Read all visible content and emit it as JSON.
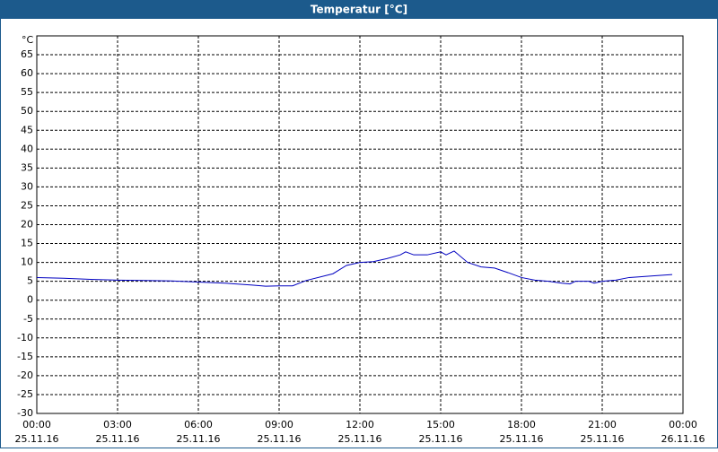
{
  "chart_data": {
    "type": "line",
    "title": "Temperatur [°C]",
    "y_label": "°C",
    "x": [
      0,
      1,
      2,
      3,
      4,
      5,
      6,
      7,
      8,
      8.5,
      9,
      9.5,
      10,
      11,
      11.5,
      12,
      12.5,
      13,
      13.5,
      13.7,
      14,
      14.5,
      15,
      15.2,
      15.5,
      16,
      16.5,
      17,
      17.5,
      18,
      18.5,
      19,
      19.5,
      19.8,
      20,
      20.5,
      20.7,
      21,
      21.5,
      22,
      23,
      23.6
    ],
    "series": [
      {
        "color": "#0000c0",
        "values": [
          6,
          5.8,
          5.5,
          5.3,
          5.2,
          5.1,
          4.8,
          4.5,
          4.0,
          3.7,
          3.8,
          3.8,
          5.2,
          7.0,
          9.2,
          10.0,
          10.2,
          11.0,
          12.0,
          12.8,
          12.0,
          12.0,
          12.8,
          12.0,
          13.0,
          10.0,
          8.8,
          8.5,
          7.3,
          6.0,
          5.3,
          5.0,
          4.5,
          4.3,
          5.0,
          5.0,
          4.5,
          5.0,
          5.3,
          6.0,
          6.5,
          6.8
        ]
      }
    ],
    "xlim": [
      0,
      24
    ],
    "xticks": [
      {
        "value": 0,
        "label": "00:00",
        "date": "25.11.16"
      },
      {
        "value": 3,
        "label": "03:00",
        "date": "25.11.16"
      },
      {
        "value": 6,
        "label": "06:00",
        "date": "25.11.16"
      },
      {
        "value": 9,
        "label": "09:00",
        "date": "25.11.16"
      },
      {
        "value": 12,
        "label": "12:00",
        "date": "25.11.16"
      },
      {
        "value": 15,
        "label": "15:00",
        "date": "25.11.16"
      },
      {
        "value": 18,
        "label": "18:00",
        "date": "25.11.16"
      },
      {
        "value": 21,
        "label": "21:00",
        "date": "25.11.16"
      },
      {
        "value": 24,
        "label": "00:00",
        "date": "26.11.16"
      }
    ],
    "ylim": [
      -30,
      70
    ],
    "yticks": [
      -30,
      -25,
      -20,
      -15,
      -10,
      -5,
      0,
      5,
      10,
      15,
      20,
      25,
      30,
      35,
      40,
      45,
      50,
      55,
      60,
      65
    ],
    "grid": true
  }
}
